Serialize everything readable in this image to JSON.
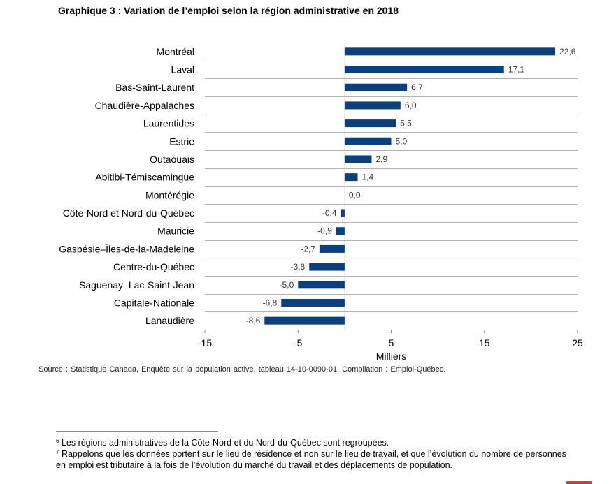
{
  "chart_data": {
    "type": "bar",
    "orientation": "horizontal",
    "title": "Graphique 3 : Variation de l’emploi selon la région administrative en 2018",
    "xlabel": "Milliers",
    "ylabel": "",
    "xlim": [
      -15,
      25
    ],
    "xticks": [
      -15,
      -5,
      5,
      15,
      25
    ],
    "grid": "horizontal",
    "bar_color": "#0b3f7d",
    "categories": [
      "Montréal",
      "Laval",
      "Bas-Saint-Laurent",
      "Chaudière-Appalaches",
      "Laurentides",
      "Estrie",
      "Outaouais",
      "Abitibi-Témiscamingue",
      "Montérégie",
      "Côte-Nord et Nord-du-Québec",
      "Mauricie",
      "Gaspésie–Îles-de-la-Madeleine",
      "Centre-du-Québec",
      "Saguenay–Lac-Saint-Jean",
      "Capitale-Nationale",
      "Lanaudière"
    ],
    "values": [
      22.6,
      17.1,
      6.7,
      6.0,
      5.5,
      5.0,
      2.9,
      1.4,
      0.0,
      -0.4,
      -0.9,
      -2.7,
      -3.8,
      -5.0,
      -6.8,
      -8.6
    ],
    "data_labels": [
      "22,6",
      "17,1",
      "6,7",
      "6,0",
      "5,5",
      "5,0",
      "2,9",
      "1,4",
      "0,0",
      "-0,4",
      "-0,9",
      "-2,7",
      "-3,8",
      "-5,0",
      "-6,8",
      "-8,6"
    ]
  },
  "source": "Source : Statistique Canada, Enquête sur la population active, tableau 14-10-0090-01. Compilation : Emploi-Québec.",
  "footnotes": [
    {
      "num": "6",
      "text": "Les régions administratives de la Côte-Nord et du Nord-du-Québec sont regroupées."
    },
    {
      "num": "7",
      "text": "Rappelons que les données portent sur le lieu de résidence et non sur le lieu de travail, et que l’évolution du nombre de personnes en emploi est tributaire à la fois de l’évolution du marché du travail et des déplacements de population."
    }
  ]
}
